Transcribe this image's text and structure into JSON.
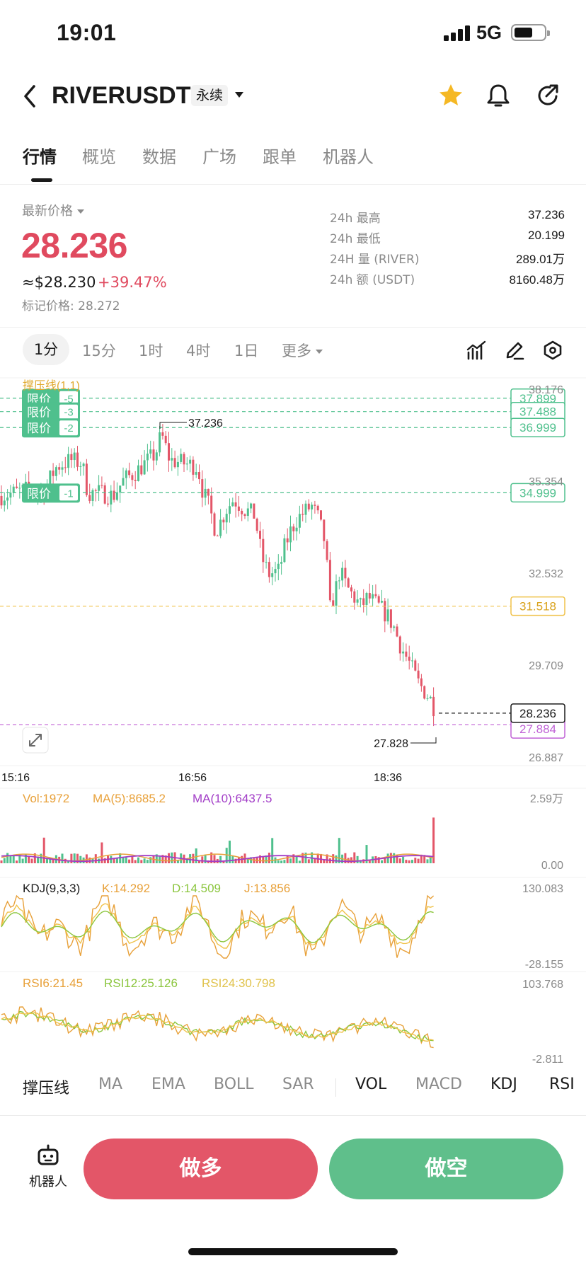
{
  "status_bar": {
    "time": "19:01",
    "network": "5G",
    "battery_level": 0.62
  },
  "header": {
    "pair": "RIVERUSDT",
    "contract_type": "永续",
    "icons": [
      "back-icon",
      "star-icon",
      "bell-icon",
      "share-icon"
    ],
    "favorite_color": "#f5b824"
  },
  "tabs": [
    {
      "label": "行情",
      "active": true
    },
    {
      "label": "概览"
    },
    {
      "label": "数据"
    },
    {
      "label": "广场"
    },
    {
      "label": "跟单"
    },
    {
      "label": "机器人"
    }
  ],
  "price": {
    "label": "最新价格",
    "last": "28.236",
    "usd": "≈$28.230",
    "change": "+39.47%",
    "mark_label": "标记价格:",
    "mark_value": "28.272"
  },
  "stats": [
    {
      "label": "24h  最高",
      "value": "37.236"
    },
    {
      "label": "24h  最低",
      "value": "20.199"
    },
    {
      "label": "24H  量 (RIVER)",
      "value": "289.01万"
    },
    {
      "label": "24h  额 (USDT)",
      "value": "8160.48万"
    }
  ],
  "intervals": {
    "items": [
      "1分",
      "15分",
      "1时",
      "4时",
      "1日"
    ],
    "more": "更多",
    "active": "1分",
    "tool_icons": [
      "indicator-icon",
      "draw-icon",
      "settings-icon"
    ]
  },
  "chart": {
    "indicator_label": "撑压线(1,1)",
    "y_axis_labels": [
      "38.176",
      "35.354",
      "32.532",
      "29.709",
      "26.887"
    ],
    "time_labels": [
      "15:16",
      "16:56",
      "18:36"
    ],
    "high_marker": "37.236",
    "low_marker": "27.828",
    "current_price_tag": "28.236",
    "support_line_tag": "31.518",
    "limit_orders": [
      {
        "label": "限价",
        "qty": "-5",
        "price": "37.899"
      },
      {
        "label": "限价",
        "qty": "-3",
        "price": "37.488"
      },
      {
        "label": "限价",
        "qty": "-2",
        "price": "36.999"
      },
      {
        "label": "限价",
        "qty": "-1",
        "price": "34.999"
      }
    ],
    "mark_price_tag": "27.884",
    "colors": {
      "up": "#4fc08d",
      "down": "#e35668",
      "support": "#f0c24a",
      "mark": "#c062d6"
    }
  },
  "volume": {
    "vol_label": "Vol:1972",
    "ma5_label": "MA(5):8685.2",
    "ma10_label": "MA(10):6437.5",
    "axis_top": "2.59万",
    "axis_bottom": "0.00"
  },
  "kdj": {
    "title": "KDJ(9,3,3)",
    "k_label": "K:14.292",
    "d_label": "D:14.509",
    "j_label": "J:13.856",
    "axis_top": "130.083",
    "axis_bottom": "-28.155"
  },
  "rsi": {
    "rsi6_label": "RSI6:21.45",
    "rsi12_label": "RSI12:25.126",
    "rsi24_label": "RSI24:30.798",
    "axis_top": "103.768",
    "axis_bottom": "-2.811"
  },
  "indicator_tabs": [
    {
      "label": "撑压线",
      "on": true
    },
    {
      "label": "MA"
    },
    {
      "label": "EMA"
    },
    {
      "label": "BOLL"
    },
    {
      "label": "SAR"
    },
    {
      "label": "VOL",
      "on": true
    },
    {
      "label": "MACD"
    },
    {
      "label": "KDJ",
      "on": true
    },
    {
      "label": "RSI",
      "on": true
    }
  ],
  "actions": {
    "robot_label": "机器人",
    "long_label": "做多",
    "short_label": "做空"
  }
}
